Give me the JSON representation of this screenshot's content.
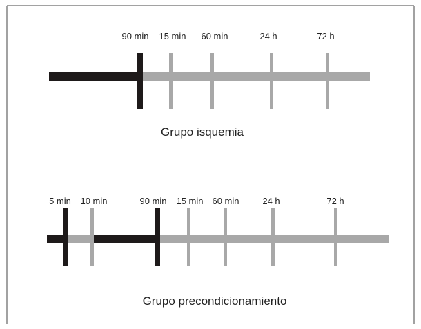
{
  "colors": {
    "ischemia": "#1e1a1a",
    "reperfusion": "#a8a8a8",
    "border": "#444444"
  },
  "isquemia": {
    "title": "Grupo isquemia",
    "labels": [
      "90 min",
      "15 min",
      "60 min",
      "24 h",
      "72 h"
    ]
  },
  "precondicionamiento": {
    "title": "Grupo precondicionamiento",
    "labels": [
      "5 min",
      "10 min",
      "90 min",
      "15 min",
      "60 min",
      "24 h",
      "72 h"
    ]
  }
}
